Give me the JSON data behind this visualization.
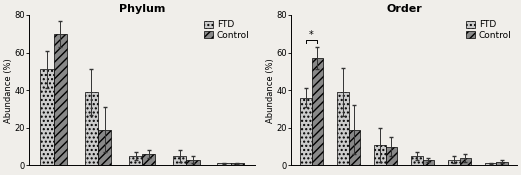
{
  "phylum": {
    "title": "Phylum",
    "ftd_values": [
      51,
      39,
      5,
      5,
      1
    ],
    "ftd_errors": [
      10,
      12,
      2,
      3,
      0.5
    ],
    "ctrl_values": [
      70,
      19,
      6,
      3,
      1
    ],
    "ctrl_errors": [
      7,
      12,
      2,
      2,
      0.3
    ],
    "n_groups": 5
  },
  "order": {
    "title": "Order",
    "ftd_values": [
      36,
      39,
      11,
      5,
      3,
      1
    ],
    "ftd_errors": [
      5,
      13,
      9,
      2,
      2,
      0.5
    ],
    "ctrl_values": [
      57,
      19,
      10,
      3,
      4,
      2
    ],
    "ctrl_errors": [
      6,
      13,
      5,
      1,
      2,
      1
    ],
    "n_groups": 6,
    "sig_group": 0,
    "sig_label": "*"
  },
  "ylim": [
    0,
    80
  ],
  "yticks": [
    0,
    20,
    40,
    60,
    80
  ],
  "ylabel": "Abundance (%)",
  "bar_width": 0.3,
  "ftd_hatch": "....",
  "ctrl_hatch": "////",
  "ftd_color": "#cccccc",
  "ctrl_color": "#888888",
  "ftd_label": "FTD",
  "ctrl_label": "Control",
  "background_color": "#f0eeea",
  "title_fontsize": 8,
  "label_fontsize": 6,
  "tick_fontsize": 6,
  "legend_fontsize": 6.5,
  "capsize": 1.5,
  "elinewidth": 0.7,
  "ecolor": "#333333"
}
